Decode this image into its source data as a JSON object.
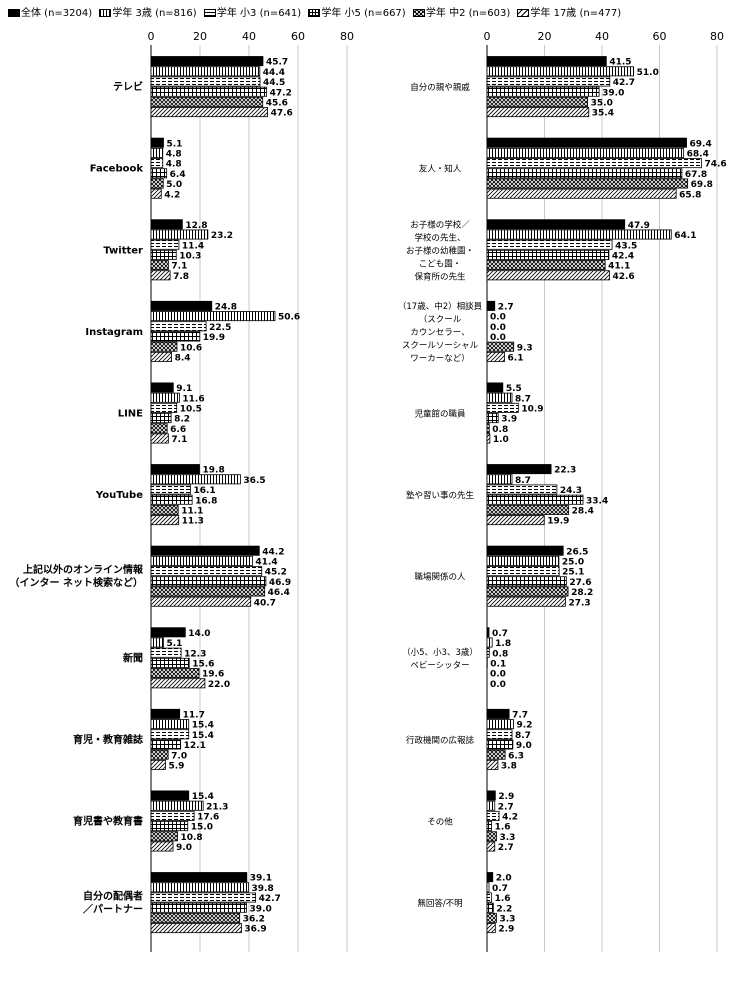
{
  "chart_data": [
    {
      "type": "bar",
      "orientation": "horizontal",
      "xlim": [
        0,
        80
      ],
      "ticks": [
        "0",
        "20",
        "40",
        "60",
        "80"
      ],
      "grid": true,
      "legend_position": "top",
      "categories": [
        "テレビ",
        "Facebook",
        "Twitter",
        "Instagram",
        "LINE",
        "YouTube",
        "上記以外のオンライン情報\n（インター ネット検索など）",
        "新聞",
        "育児・教育雑誌",
        "育児書や教育書",
        "自分の配偶者\n／パートナー"
      ],
      "series": [
        {
          "name": "全体 (n=3204)",
          "pattern": "solid",
          "values": [
            45.7,
            5.1,
            12.8,
            24.8,
            9.1,
            19.8,
            44.2,
            14.0,
            11.7,
            15.4,
            39.1
          ]
        },
        {
          "name": "学年 3歳 (n=816)",
          "pattern": "vlines",
          "values": [
            44.4,
            4.8,
            23.2,
            50.6,
            11.6,
            36.5,
            41.4,
            5.1,
            15.4,
            21.3,
            39.8
          ]
        },
        {
          "name": "学年 小3 (n=641)",
          "pattern": "dashes",
          "values": [
            44.5,
            4.8,
            11.4,
            22.5,
            10.5,
            16.1,
            45.2,
            12.3,
            15.4,
            17.6,
            42.7
          ]
        },
        {
          "name": "学年 小5 (n=667)",
          "pattern": "grid",
          "values": [
            47.2,
            6.4,
            10.3,
            19.9,
            8.2,
            16.8,
            46.9,
            15.6,
            12.1,
            15.0,
            39.0
          ]
        },
        {
          "name": "学年 中2 (n=603)",
          "pattern": "cross",
          "values": [
            45.6,
            5.0,
            7.1,
            10.6,
            6.6,
            11.1,
            46.4,
            19.6,
            7.0,
            10.8,
            36.2
          ]
        },
        {
          "name": "学年 17歳 (n=477)",
          "pattern": "diag",
          "values": [
            47.6,
            4.2,
            7.8,
            8.4,
            7.1,
            11.3,
            40.7,
            22.0,
            5.9,
            9.0,
            36.9
          ]
        }
      ]
    },
    {
      "type": "bar",
      "orientation": "horizontal",
      "xlim": [
        0,
        80
      ],
      "ticks": [
        "0",
        "20",
        "40",
        "60",
        "80"
      ],
      "grid": true,
      "categories": [
        "自分の親や親戚",
        "友人・知人",
        "お子様の学校／\n学校の先生、\nお子様の幼稚園・\nこども園・\n保育所の先生",
        "（17歳、中2）相談員\n（スクール\nカウンセラー、\nスクールソーシャル\nワーカーなど）",
        "児童館の職員",
        "塾や習い事の先生",
        "職場関係の人",
        "（小5、小3、3歳）\nベビーシッター",
        "行政機関の広報誌",
        "その他",
        "無回答/不明"
      ],
      "series": [
        {
          "name": "全体 (n=3204)",
          "pattern": "solid",
          "values": [
            41.5,
            69.4,
            47.9,
            2.7,
            5.5,
            22.3,
            26.5,
            0.7,
            7.7,
            2.9,
            2.0
          ]
        },
        {
          "name": "学年 3歳 (n=816)",
          "pattern": "vlines",
          "values": [
            51.0,
            68.4,
            64.1,
            0.0,
            8.7,
            8.7,
            25.0,
            1.8,
            9.2,
            2.7,
            0.7
          ]
        },
        {
          "name": "学年 小3 (n=641)",
          "pattern": "dashes",
          "values": [
            42.7,
            74.6,
            43.5,
            0.0,
            10.9,
            24.3,
            25.1,
            0.8,
            8.7,
            4.2,
            1.6
          ]
        },
        {
          "name": "学年 小5 (n=667)",
          "pattern": "grid",
          "values": [
            39.0,
            67.8,
            42.4,
            0.0,
            3.9,
            33.4,
            27.6,
            0.1,
            9.0,
            1.6,
            2.2
          ]
        },
        {
          "name": "学年 中2 (n=603)",
          "pattern": "cross",
          "values": [
            35.0,
            69.8,
            41.1,
            9.3,
            0.8,
            28.4,
            28.2,
            0.0,
            6.3,
            3.3,
            3.3
          ]
        },
        {
          "name": "学年 17歳 (n=477)",
          "pattern": "diag",
          "values": [
            35.4,
            65.8,
            42.6,
            6.1,
            1.0,
            19.9,
            27.3,
            0.0,
            3.8,
            2.7,
            2.9
          ]
        }
      ]
    }
  ]
}
